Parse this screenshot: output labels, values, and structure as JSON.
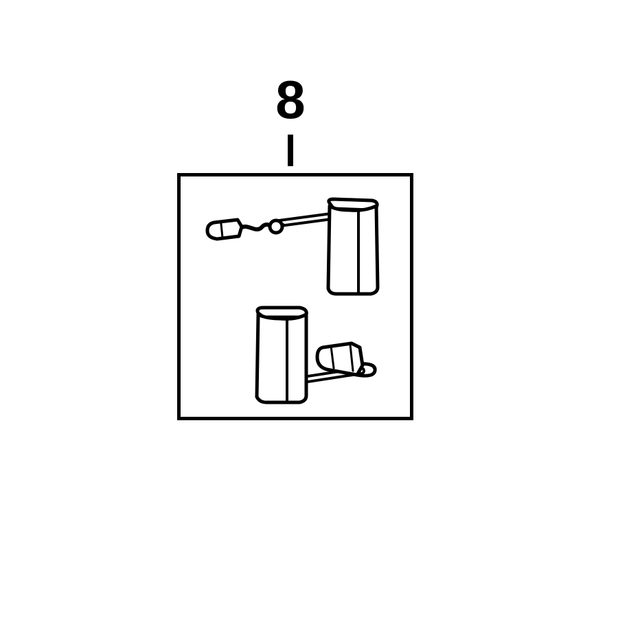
{
  "diagram": {
    "callout": {
      "label": "8"
    },
    "part": {
      "icon": "carbon-brush-pair-icon",
      "line_color": "#000000",
      "fill_color": "#ffffff"
    }
  }
}
